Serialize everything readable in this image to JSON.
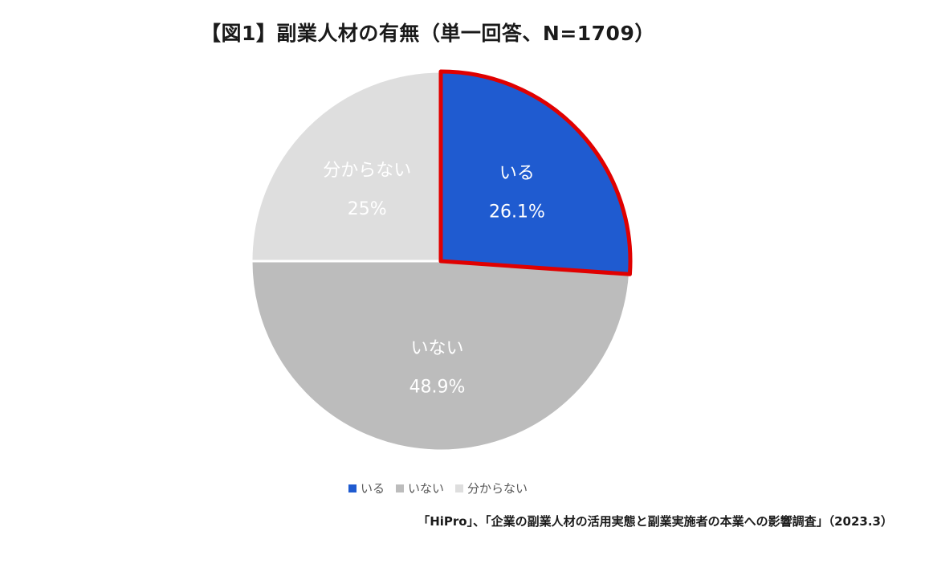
{
  "chart_data": {
    "type": "pie",
    "title": "【図1】副業人材の有無（単一回答、N=1709）",
    "slices": [
      {
        "label": "いる",
        "value": 26.1,
        "value_label": "26.1%",
        "color": "#1f5bd0",
        "highlight_color": "#e00000"
      },
      {
        "label": "いない",
        "value": 48.9,
        "value_label": "48.9%",
        "color": "#bcbcbc"
      },
      {
        "label": "分からない",
        "value": 25,
        "value_label": "25%",
        "color": "#dedede"
      }
    ],
    "legend_position": "bottom"
  },
  "source": "「HiPro」、「企業の副業人材の活用実態と副業実施者の本業への影響調査」（2023.3）"
}
